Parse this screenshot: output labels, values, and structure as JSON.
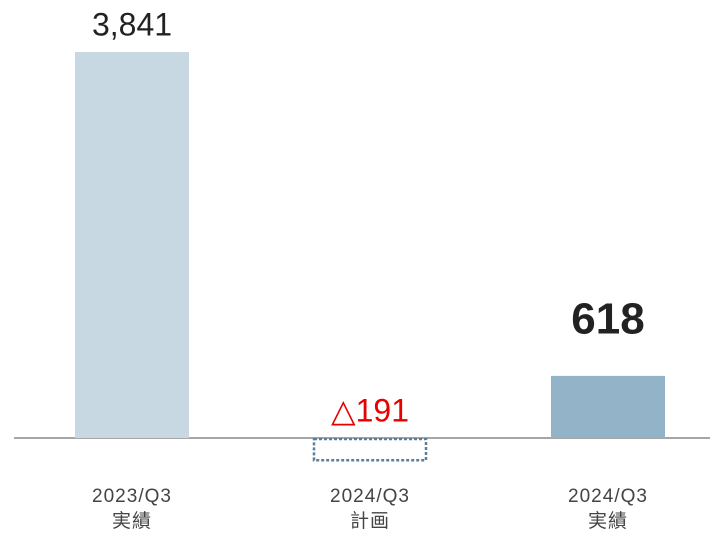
{
  "chart_data": {
    "type": "bar",
    "categories": [
      "2023/Q3",
      "2024/Q3",
      "2024/Q3"
    ],
    "category_sublabels": [
      "実績",
      "計画",
      "実績"
    ],
    "values": [
      3841,
      -191,
      618
    ],
    "value_labels": [
      "3,841",
      "△191",
      "618"
    ],
    "colors": [
      "#c8d8e3",
      "#5b7f9a",
      "#93b3c8"
    ],
    "value_label_colors": [
      "#222222",
      "#e60000",
      "#222222"
    ],
    "value_label_weights": [
      "normal",
      "normal",
      "bold"
    ]
  }
}
